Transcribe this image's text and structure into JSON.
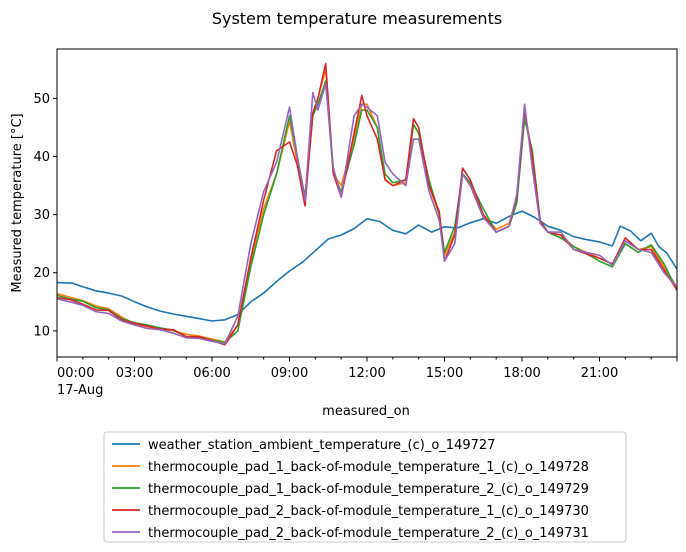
{
  "chart_data": {
    "type": "line",
    "title": "System temperature measurements",
    "xlabel": "measured_on",
    "ylabel": "Measured temperature [°C]",
    "xlim": [
      0,
      24
    ],
    "ylim": [
      5.5,
      58.5
    ],
    "x_ticks": [
      {
        "x": 0,
        "label": "00:00",
        "sublabel": "17-Aug"
      },
      {
        "x": 3,
        "label": "03:00"
      },
      {
        "x": 6,
        "label": "06:00"
      },
      {
        "x": 9,
        "label": "09:00"
      },
      {
        "x": 12,
        "label": "12:00"
      },
      {
        "x": 15,
        "label": "15:00"
      },
      {
        "x": 18,
        "label": "18:00"
      },
      {
        "x": 21,
        "label": "21:00"
      }
    ],
    "y_ticks": [
      10,
      20,
      30,
      40,
      50
    ],
    "grid": false,
    "legend_position": "below plot",
    "series": [
      {
        "name": "weather_station_ambient_temperature_(c)_o_149727",
        "color": "#1f77b4",
        "points": [
          [
            0,
            18.3
          ],
          [
            0.6,
            18.2
          ],
          [
            1,
            17.6
          ],
          [
            1.5,
            16.9
          ],
          [
            2,
            16.5
          ],
          [
            2.5,
            16.0
          ],
          [
            3,
            15.0
          ],
          [
            3.5,
            14.1
          ],
          [
            4,
            13.4
          ],
          [
            4.5,
            12.9
          ],
          [
            5,
            12.5
          ],
          [
            5.5,
            12.1
          ],
          [
            6,
            11.7
          ],
          [
            6.5,
            11.9
          ],
          [
            7,
            12.8
          ],
          [
            7.5,
            15.0
          ],
          [
            8,
            16.5
          ],
          [
            8.5,
            18.5
          ],
          [
            9,
            20.3
          ],
          [
            9.5,
            21.8
          ],
          [
            10,
            23.8
          ],
          [
            10.5,
            25.8
          ],
          [
            11,
            26.5
          ],
          [
            11.5,
            27.6
          ],
          [
            12,
            29.3
          ],
          [
            12.5,
            28.8
          ],
          [
            13,
            27.3
          ],
          [
            13.5,
            26.7
          ],
          [
            14,
            28.2
          ],
          [
            14.5,
            27.0
          ],
          [
            15,
            27.9
          ],
          [
            15.5,
            27.7
          ],
          [
            16,
            28.6
          ],
          [
            16.5,
            29.3
          ],
          [
            17,
            28.5
          ],
          [
            17.5,
            29.7
          ],
          [
            18,
            30.6
          ],
          [
            18.5,
            29.5
          ],
          [
            19,
            28.0
          ],
          [
            19.5,
            27.3
          ],
          [
            20,
            26.2
          ],
          [
            20.5,
            25.7
          ],
          [
            21,
            25.3
          ],
          [
            21.5,
            24.6
          ],
          [
            21.8,
            28.0
          ],
          [
            22.2,
            27.2
          ],
          [
            22.6,
            25.5
          ],
          [
            23,
            26.8
          ],
          [
            23.3,
            24.5
          ],
          [
            23.6,
            23.4
          ],
          [
            24,
            20.6
          ]
        ]
      },
      {
        "name": "thermocouple_pad_1_back-of-module_temperature_1_(c)_o_149728",
        "color": "#ff7f0e",
        "points": [
          [
            0,
            16.4
          ],
          [
            0.5,
            15.8
          ],
          [
            1,
            15.2
          ],
          [
            1.5,
            14.3
          ],
          [
            2,
            13.8
          ],
          [
            2.5,
            12.4
          ],
          [
            3,
            11.2
          ],
          [
            3.5,
            10.7
          ],
          [
            4,
            10.4
          ],
          [
            4.5,
            10.0
          ],
          [
            5,
            9.4
          ],
          [
            5.5,
            9.1
          ],
          [
            6,
            8.6
          ],
          [
            6.5,
            8.1
          ],
          [
            7,
            11.0
          ],
          [
            7.5,
            22.0
          ],
          [
            8,
            31.0
          ],
          [
            8.5,
            37.0
          ],
          [
            9,
            46.0
          ],
          [
            9.3,
            39.0
          ],
          [
            9.6,
            33.0
          ],
          [
            9.9,
            47.0
          ],
          [
            10.1,
            50.0
          ],
          [
            10.4,
            55.0
          ],
          [
            10.7,
            37.0
          ],
          [
            11,
            35.0
          ],
          [
            11.5,
            43.0
          ],
          [
            11.8,
            49.0
          ],
          [
            12,
            49.0
          ],
          [
            12.4,
            45.0
          ],
          [
            12.7,
            36.0
          ],
          [
            13,
            35.0
          ],
          [
            13.5,
            35.5
          ],
          [
            13.8,
            45.5
          ],
          [
            14,
            44.0
          ],
          [
            14.4,
            35.0
          ],
          [
            14.8,
            30.0
          ],
          [
            15,
            23.0
          ],
          [
            15.4,
            27.0
          ],
          [
            15.7,
            37.0
          ],
          [
            16,
            35.0
          ],
          [
            16.5,
            30.0
          ],
          [
            17,
            27.5
          ],
          [
            17.5,
            28.5
          ],
          [
            17.8,
            33.0
          ],
          [
            18.1,
            47.0
          ],
          [
            18.4,
            40.0
          ],
          [
            18.7,
            29.0
          ],
          [
            19,
            27.0
          ],
          [
            19.5,
            26.5
          ],
          [
            20,
            24.5
          ],
          [
            21,
            22.5
          ],
          [
            21.5,
            21.5
          ],
          [
            22,
            25.5
          ],
          [
            22.5,
            24.0
          ],
          [
            23,
            24.5
          ],
          [
            23.5,
            21.0
          ],
          [
            24,
            17.5
          ]
        ]
      },
      {
        "name": "thermocouple_pad_1_back-of-module_temperature_2_(c)_o_149729",
        "color": "#2ca02c",
        "points": [
          [
            0,
            16.1
          ],
          [
            0.5,
            15.5
          ],
          [
            1,
            15.1
          ],
          [
            1.5,
            14.0
          ],
          [
            2,
            13.6
          ],
          [
            2.5,
            12.1
          ],
          [
            3,
            11.4
          ],
          [
            3.5,
            11.0
          ],
          [
            4,
            10.5
          ],
          [
            4.5,
            10.1
          ],
          [
            5,
            9.0
          ],
          [
            5.5,
            8.9
          ],
          [
            6,
            8.4
          ],
          [
            6.5,
            8.0
          ],
          [
            7,
            10.0
          ],
          [
            7.5,
            21.0
          ],
          [
            8,
            30.0
          ],
          [
            8.5,
            37.0
          ],
          [
            9,
            47.0
          ],
          [
            9.3,
            40.0
          ],
          [
            9.6,
            33.0
          ],
          [
            9.9,
            47.0
          ],
          [
            10.1,
            49.0
          ],
          [
            10.4,
            53.0
          ],
          [
            10.7,
            37.0
          ],
          [
            11,
            34.0
          ],
          [
            11.5,
            42.0
          ],
          [
            11.8,
            48.0
          ],
          [
            12,
            48.0
          ],
          [
            12.4,
            45.0
          ],
          [
            12.7,
            37.0
          ],
          [
            13,
            35.5
          ],
          [
            13.5,
            36.0
          ],
          [
            13.8,
            45.5
          ],
          [
            14,
            44.0
          ],
          [
            14.4,
            36.0
          ],
          [
            14.8,
            30.0
          ],
          [
            15,
            23.5
          ],
          [
            15.4,
            28.0
          ],
          [
            15.7,
            37.0
          ],
          [
            16,
            35.5
          ],
          [
            16.5,
            31.0
          ],
          [
            17,
            27.0
          ],
          [
            17.5,
            28.0
          ],
          [
            17.8,
            32.0
          ],
          [
            18.1,
            46.5
          ],
          [
            18.4,
            41.0
          ],
          [
            18.7,
            29.0
          ],
          [
            19,
            27.0
          ],
          [
            19.5,
            26.0
          ],
          [
            20,
            24.5
          ],
          [
            21,
            22.0
          ],
          [
            21.5,
            21.0
          ],
          [
            22,
            25.0
          ],
          [
            22.5,
            23.5
          ],
          [
            23,
            24.8
          ],
          [
            23.5,
            21.5
          ],
          [
            24,
            17.0
          ]
        ]
      },
      {
        "name": "thermocouple_pad_2_back-of-module_temperature_1_(c)_o_149730",
        "color": "#d62728",
        "points": [
          [
            0,
            15.7
          ],
          [
            0.5,
            15.4
          ],
          [
            1,
            14.6
          ],
          [
            1.5,
            13.6
          ],
          [
            2,
            13.5
          ],
          [
            2.5,
            11.9
          ],
          [
            3,
            11.3
          ],
          [
            3.5,
            10.8
          ],
          [
            4,
            10.3
          ],
          [
            4.5,
            10.2
          ],
          [
            5,
            9.0
          ],
          [
            5.5,
            9.0
          ],
          [
            6,
            8.3
          ],
          [
            6.5,
            7.6
          ],
          [
            7,
            11.0
          ],
          [
            7.5,
            22.5
          ],
          [
            8,
            32.5
          ],
          [
            8.5,
            41.0
          ],
          [
            9,
            42.5
          ],
          [
            9.3,
            38.5
          ],
          [
            9.6,
            31.5
          ],
          [
            9.9,
            47.5
          ],
          [
            10.1,
            50.0
          ],
          [
            10.4,
            56.0
          ],
          [
            10.7,
            37.0
          ],
          [
            11,
            33.0
          ],
          [
            11.5,
            44.0
          ],
          [
            11.8,
            50.5
          ],
          [
            12,
            47.0
          ],
          [
            12.4,
            43.0
          ],
          [
            12.7,
            36.0
          ],
          [
            13,
            35.0
          ],
          [
            13.5,
            36.0
          ],
          [
            13.8,
            46.5
          ],
          [
            14,
            45.0
          ],
          [
            14.4,
            35.0
          ],
          [
            14.8,
            30.5
          ],
          [
            15,
            22.0
          ],
          [
            15.4,
            26.5
          ],
          [
            15.7,
            38.0
          ],
          [
            16,
            36.0
          ],
          [
            16.5,
            30.0
          ],
          [
            17,
            27.0
          ],
          [
            17.5,
            28.0
          ],
          [
            17.8,
            33.0
          ],
          [
            18.1,
            48.0
          ],
          [
            18.4,
            40.0
          ],
          [
            18.7,
            29.0
          ],
          [
            19,
            27.0
          ],
          [
            19.5,
            26.5
          ],
          [
            20,
            24.0
          ],
          [
            21,
            22.5
          ],
          [
            21.5,
            21.5
          ],
          [
            22,
            26.0
          ],
          [
            22.5,
            24.0
          ],
          [
            23,
            24.0
          ],
          [
            23.5,
            20.5
          ],
          [
            24,
            17.0
          ]
        ]
      },
      {
        "name": "thermocouple_pad_2_back-of-module_temperature_2_(c)_o_149731",
        "color": "#9467bd",
        "points": [
          [
            0,
            15.5
          ],
          [
            0.5,
            15.0
          ],
          [
            1,
            14.4
          ],
          [
            1.5,
            13.3
          ],
          [
            2,
            13.0
          ],
          [
            2.5,
            11.7
          ],
          [
            3,
            11.0
          ],
          [
            3.5,
            10.4
          ],
          [
            4,
            10.2
          ],
          [
            4.5,
            9.6
          ],
          [
            5,
            8.8
          ],
          [
            5.5,
            8.7
          ],
          [
            6,
            8.2
          ],
          [
            6.5,
            7.8
          ],
          [
            7,
            12.5
          ],
          [
            7.5,
            25.0
          ],
          [
            8,
            34.0
          ],
          [
            8.5,
            39.0
          ],
          [
            9,
            48.5
          ],
          [
            9.3,
            40.0
          ],
          [
            9.6,
            32.5
          ],
          [
            9.9,
            51.0
          ],
          [
            10.1,
            48.0
          ],
          [
            10.4,
            52.5
          ],
          [
            10.7,
            38.0
          ],
          [
            11,
            33.0
          ],
          [
            11.5,
            47.0
          ],
          [
            11.8,
            49.0
          ],
          [
            12,
            48.5
          ],
          [
            12.4,
            47.0
          ],
          [
            12.7,
            39.0
          ],
          [
            13,
            37.0
          ],
          [
            13.5,
            35.0
          ],
          [
            13.8,
            43.0
          ],
          [
            14,
            43.0
          ],
          [
            14.4,
            34.0
          ],
          [
            14.8,
            29.0
          ],
          [
            15,
            22.0
          ],
          [
            15.4,
            25.0
          ],
          [
            15.7,
            37.0
          ],
          [
            16,
            35.0
          ],
          [
            16.5,
            29.5
          ],
          [
            17,
            27.0
          ],
          [
            17.5,
            28.0
          ],
          [
            17.8,
            33.5
          ],
          [
            18.1,
            49.0
          ],
          [
            18.4,
            38.0
          ],
          [
            18.7,
            28.5
          ],
          [
            19,
            27.0
          ],
          [
            19.5,
            27.0
          ],
          [
            20,
            24.0
          ],
          [
            21,
            23.0
          ],
          [
            21.5,
            21.3
          ],
          [
            22,
            25.5
          ],
          [
            22.5,
            24.0
          ],
          [
            23,
            23.5
          ],
          [
            23.5,
            20.0
          ],
          [
            24,
            17.5
          ]
        ]
      }
    ]
  }
}
